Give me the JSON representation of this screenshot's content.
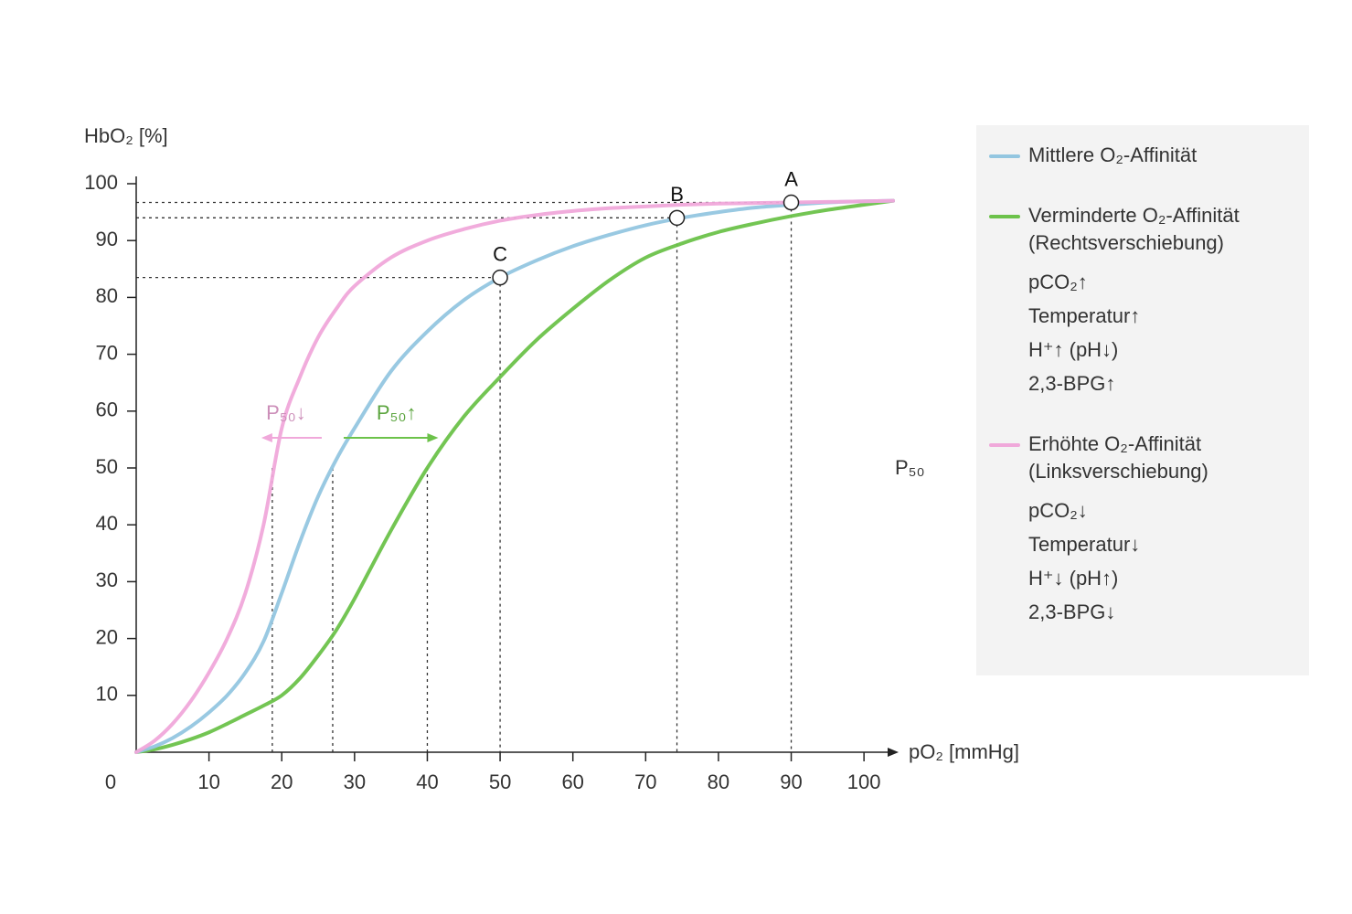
{
  "chart_data": {
    "type": "line",
    "y_label": "HbO₂ [%]",
    "x_label": "pO₂ [mmHg]",
    "xlim": [
      0,
      104
    ],
    "ylim": [
      0,
      100
    ],
    "xticks": [
      0,
      10,
      20,
      30,
      40,
      50,
      60,
      70,
      80,
      90,
      100
    ],
    "yticks": [
      10,
      20,
      30,
      40,
      50,
      60,
      70,
      80,
      90,
      100
    ],
    "x": [
      0,
      2.5,
      5,
      7.5,
      10,
      12.5,
      15,
      17.5,
      20,
      22.5,
      25,
      27.5,
      30,
      35,
      40,
      45,
      50,
      55,
      60,
      65,
      70,
      75,
      80,
      85,
      90,
      95,
      100,
      104
    ],
    "series": [
      {
        "name": "Mittlere O₂-Affinität",
        "color": "#93c6e0",
        "p50": 27,
        "values": [
          0,
          1,
          2.5,
          4.5,
          7,
          10,
          14,
          19.5,
          28,
          37,
          45,
          51.5,
          57,
          67,
          74,
          79.5,
          83.5,
          86.5,
          89,
          91,
          92.7,
          94,
          95,
          95.8,
          96.3,
          96.7,
          96.9,
          97
        ]
      },
      {
        "name": "Verminderte O₂-Affinität",
        "note": "(Rechtsverschiebung)",
        "color": "#6cc24a",
        "p50": 40,
        "factors": [
          "pCO₂↑",
          "Temperatur↑",
          "H⁺↑ (pH↓)",
          "2,3-BPG↑"
        ],
        "shift_label": "P₅₀↑",
        "values": [
          0,
          0.5,
          1.3,
          2.3,
          3.5,
          5,
          6.6,
          8.2,
          10,
          13,
          17,
          21.5,
          27,
          39,
          50,
          59,
          66,
          72.5,
          78,
          83,
          87,
          89.5,
          91.5,
          93,
          94.3,
          95.4,
          96.3,
          97
        ]
      },
      {
        "name": "Erhöhte O₂-Affinität",
        "note": "(Linksverschiebung)",
        "color": "#f0a8da",
        "p50": 18.7,
        "factors": [
          "pCO₂↓",
          "Temperatur↓",
          "H⁺↓ (pH↑)",
          "2,3-BPG↓"
        ],
        "shift_label": "P₅₀↓",
        "values": [
          0,
          2,
          5,
          9,
          14,
          20,
          28,
          40,
          57,
          66,
          73,
          78,
          82,
          87,
          90,
          92,
          93.5,
          94.5,
          95.2,
          95.7,
          96,
          96.3,
          96.5,
          96.6,
          96.7,
          96.8,
          96.9,
          97
        ]
      }
    ],
    "p50_line": {
      "value": 50,
      "label": "P₅₀"
    },
    "points": [
      {
        "label": "A",
        "x": 90,
        "y": 96.7
      },
      {
        "label": "B",
        "x": 74.3,
        "y": 94
      },
      {
        "label": "C",
        "x": 50,
        "y": 83.5
      }
    ]
  }
}
